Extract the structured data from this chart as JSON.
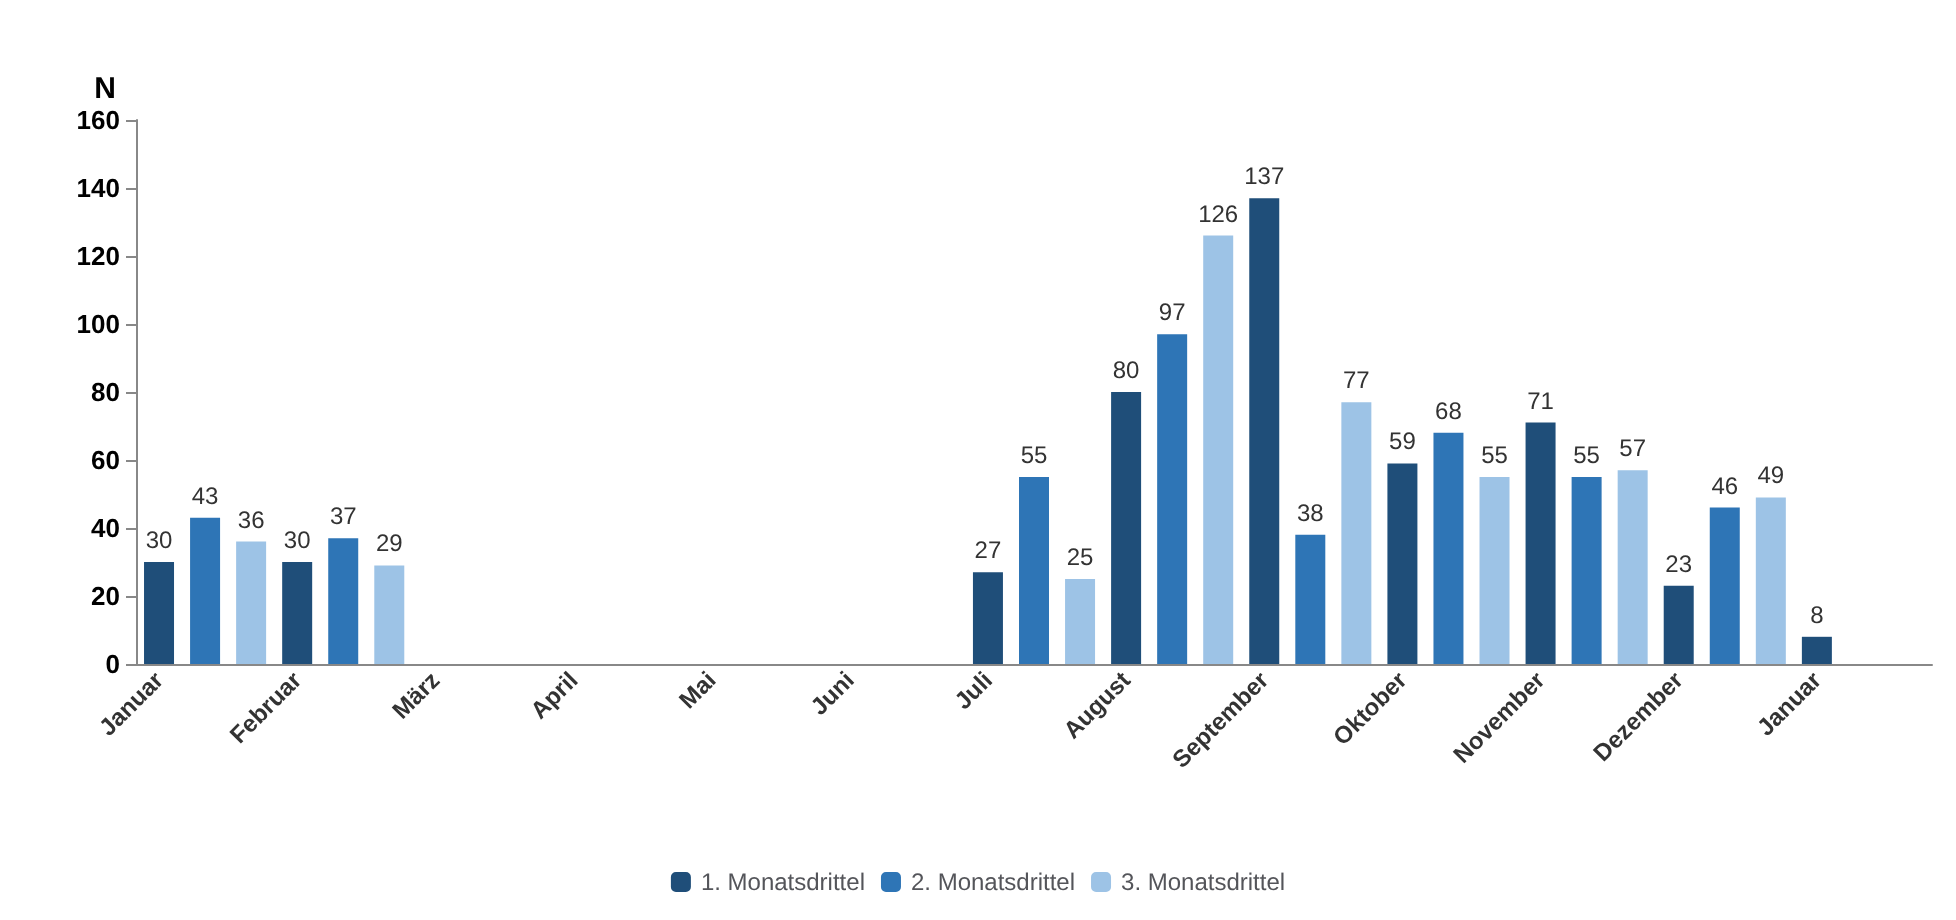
{
  "chart_data": {
    "type": "bar",
    "ylabel": "N",
    "categories": [
      "Januar",
      null,
      null,
      "Februar",
      null,
      null,
      "März",
      null,
      null,
      "April",
      null,
      null,
      "Mai",
      null,
      null,
      "Juni",
      null,
      null,
      "Juli",
      null,
      null,
      "August",
      null,
      null,
      "September",
      null,
      null,
      "Oktober",
      null,
      null,
      "November",
      null,
      null,
      "Dezember",
      null,
      null,
      "Januar",
      null,
      null
    ],
    "series": [
      {
        "name": "1. Monatsdrittel",
        "color": "#1f4e79",
        "values": [
          30,
          null,
          null,
          30,
          null,
          null,
          null,
          null,
          null,
          null,
          null,
          null,
          null,
          null,
          null,
          null,
          null,
          null,
          27,
          null,
          null,
          80,
          null,
          null,
          137,
          null,
          null,
          59,
          null,
          null,
          71,
          null,
          null,
          23,
          null,
          null,
          8,
          null,
          null
        ]
      },
      {
        "name": "2. Monatsdrittel",
        "color": "#2e75b6",
        "values": [
          null,
          43,
          null,
          null,
          37,
          null,
          null,
          null,
          null,
          null,
          null,
          null,
          null,
          null,
          null,
          null,
          null,
          null,
          null,
          55,
          null,
          null,
          97,
          null,
          null,
          38,
          null,
          null,
          68,
          null,
          null,
          55,
          null,
          null,
          46,
          null,
          null,
          null,
          null
        ]
      },
      {
        "name": "3. Monatsdrittel",
        "color": "#9dc3e6",
        "values": [
          null,
          null,
          36,
          null,
          null,
          29,
          null,
          null,
          null,
          null,
          null,
          null,
          null,
          null,
          null,
          null,
          null,
          null,
          null,
          null,
          25,
          null,
          null,
          126,
          null,
          null,
          77,
          null,
          null,
          55,
          null,
          null,
          57,
          null,
          null,
          49,
          null,
          null,
          null
        ]
      }
    ],
    "ylim": [
      0,
      160
    ],
    "yticks": [
      0,
      20,
      40,
      60,
      80,
      100,
      120,
      140,
      160
    ],
    "grid": false,
    "legend": "bottom",
    "data_labels": true
  }
}
